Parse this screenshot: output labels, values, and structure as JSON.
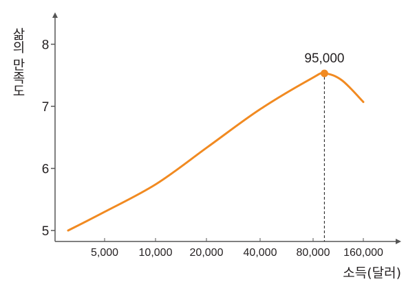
{
  "chart_data": {
    "type": "line",
    "xlabel": "소득(달러)",
    "ylabel": "삶의 만족도",
    "x_ticks": [
      "5,000",
      "10,000",
      "20,000",
      "40,000",
      "80,000",
      "160,000"
    ],
    "x_scale": "log",
    "y_ticks": [
      "5",
      "6",
      "7",
      "8"
    ],
    "ylim": [
      5,
      8
    ],
    "grid": false,
    "colors": {
      "line": "#f18a21",
      "axis": "#555555",
      "text": "#231f20",
      "dash": "#333333"
    },
    "series": [
      {
        "x": [
          2500,
          5000,
          10000,
          20000,
          40000,
          80000,
          95000,
          120000,
          160000
        ],
        "y": [
          5.0,
          5.3,
          5.75,
          6.35,
          6.95,
          7.45,
          7.53,
          7.42,
          7.07
        ]
      }
    ],
    "peak": {
      "x": 95000,
      "y": 7.53,
      "label": "95,000"
    }
  }
}
